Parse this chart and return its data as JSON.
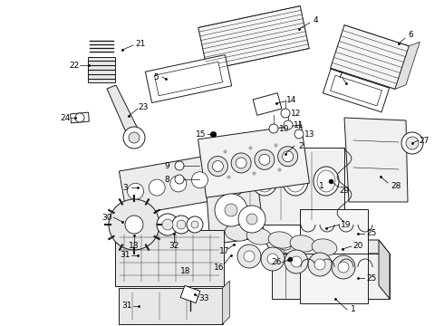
{
  "background_color": "#ffffff",
  "line_color": "#1a1a1a",
  "label_color": "#000000",
  "fig_width": 4.9,
  "fig_height": 3.6,
  "dpi": 100,
  "image_data": "target_recreation"
}
